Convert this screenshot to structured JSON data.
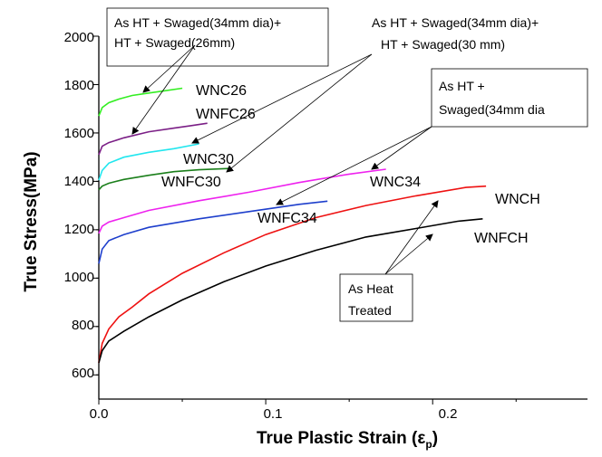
{
  "chart_data": {
    "type": "line",
    "title": "",
    "xlabel": "True Plastic Strain (ε",
    "xlabel_sub": "p",
    "xlabel_close": ")",
    "ylabel": "True Stress(MPa)",
    "xlim": [
      0.0,
      0.28
    ],
    "ylim": [
      500,
      2000
    ],
    "x_ticks": [
      0.0,
      0.1,
      0.2
    ],
    "x_tick_labels": [
      "0.0",
      "0.1",
      "0.2"
    ],
    "y_ticks": [
      600,
      800,
      1000,
      1200,
      1400,
      1600,
      1800,
      2000
    ],
    "y_tick_labels": [
      "600",
      "800",
      "1000",
      "1200",
      "1400",
      "1600",
      "1800",
      "2000"
    ],
    "grid": false,
    "series": [
      {
        "name": "WNC26",
        "color": "#33ee22",
        "x": [
          0,
          0.002,
          0.006,
          0.012,
          0.02,
          0.03,
          0.04,
          0.05
        ],
        "y": [
          1670,
          1705,
          1725,
          1740,
          1755,
          1765,
          1775,
          1785
        ]
      },
      {
        "name": "WNFC26",
        "color": "#7b1f86",
        "x": [
          0,
          0.002,
          0.006,
          0.015,
          0.03,
          0.045,
          0.055,
          0.065
        ],
        "y": [
          1510,
          1545,
          1560,
          1580,
          1605,
          1620,
          1630,
          1640
        ]
      },
      {
        "name": "WNC30",
        "color": "#22e6ee",
        "x": [
          0,
          0.002,
          0.006,
          0.015,
          0.03,
          0.045,
          0.06
        ],
        "y": [
          1405,
          1445,
          1475,
          1500,
          1520,
          1535,
          1555
        ]
      },
      {
        "name": "WNFC30",
        "color": "#1b7f1b",
        "x": [
          0,
          0.002,
          0.006,
          0.015,
          0.03,
          0.045,
          0.06,
          0.078
        ],
        "y": [
          1365,
          1380,
          1392,
          1408,
          1425,
          1440,
          1448,
          1453
        ]
      },
      {
        "name": "WNC34",
        "color": "#ee22ee",
        "x": [
          0,
          0.002,
          0.006,
          0.015,
          0.03,
          0.06,
          0.09,
          0.12,
          0.15,
          0.172
        ],
        "y": [
          1185,
          1215,
          1232,
          1250,
          1280,
          1320,
          1355,
          1395,
          1430,
          1450
        ]
      },
      {
        "name": "WNFC34",
        "color": "#1e3fcc",
        "x": [
          0,
          0.002,
          0.006,
          0.015,
          0.03,
          0.06,
          0.09,
          0.12,
          0.137
        ],
        "y": [
          1060,
          1120,
          1155,
          1180,
          1210,
          1245,
          1275,
          1305,
          1318
        ]
      },
      {
        "name": "WNCH",
        "color": "#ee1111",
        "x": [
          0,
          0.002,
          0.006,
          0.012,
          0.02,
          0.03,
          0.05,
          0.075,
          0.1,
          0.13,
          0.16,
          0.19,
          0.22,
          0.232
        ],
        "y": [
          650,
          730,
          790,
          840,
          880,
          935,
          1020,
          1105,
          1180,
          1250,
          1300,
          1340,
          1375,
          1380
        ]
      },
      {
        "name": "WNFCH",
        "color": "#000000",
        "x": [
          0,
          0.002,
          0.006,
          0.015,
          0.03,
          0.05,
          0.075,
          0.1,
          0.13,
          0.16,
          0.19,
          0.215,
          0.23
        ],
        "y": [
          650,
          700,
          740,
          780,
          840,
          910,
          985,
          1050,
          1115,
          1170,
          1205,
          1235,
          1245
        ]
      }
    ],
    "series_labels": {
      "WNC26": "WNC26",
      "WNFC26": "WNFC26",
      "WNC30": "WNC30",
      "WNFC30": "WNFC30",
      "WNC34": "WNC34",
      "WNFC34": "WNFC34",
      "WNCH": "WNCH",
      "WNFCH": "WNFCH"
    },
    "annotations": {
      "box26": [
        "As HT + Swaged(34mm dia)+",
        "HT + Swaged(26mm)"
      ],
      "box30": [
        "As HT + Swaged(34mm dia)+",
        "HT + Swaged(30 mm)"
      ],
      "box34": [
        "As HT +",
        "Swaged(34mm dia"
      ],
      "boxHT": [
        "As Heat",
        "Treated"
      ]
    }
  }
}
